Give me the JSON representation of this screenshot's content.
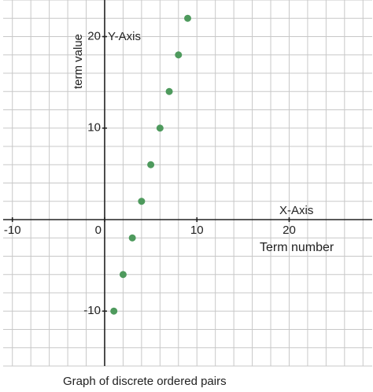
{
  "chart_data": {
    "type": "scatter",
    "title": "Graph of discrete ordered pairs",
    "x_axis_name": "X-Axis",
    "y_axis_name": "Y-Axis",
    "x_label": "Term number",
    "y_label": "term value",
    "x": [
      1,
      2,
      3,
      4,
      5,
      6,
      7,
      8,
      9
    ],
    "values": [
      -10,
      -6,
      -2,
      2,
      6,
      10,
      14,
      18,
      22
    ],
    "color": "#4e9a5d",
    "xlim": [
      -11,
      29
    ],
    "ylim": [
      -16,
      24
    ],
    "xticks": [
      -10,
      0,
      10,
      20
    ],
    "yticks": [
      -10,
      10,
      20
    ],
    "grid": true
  }
}
